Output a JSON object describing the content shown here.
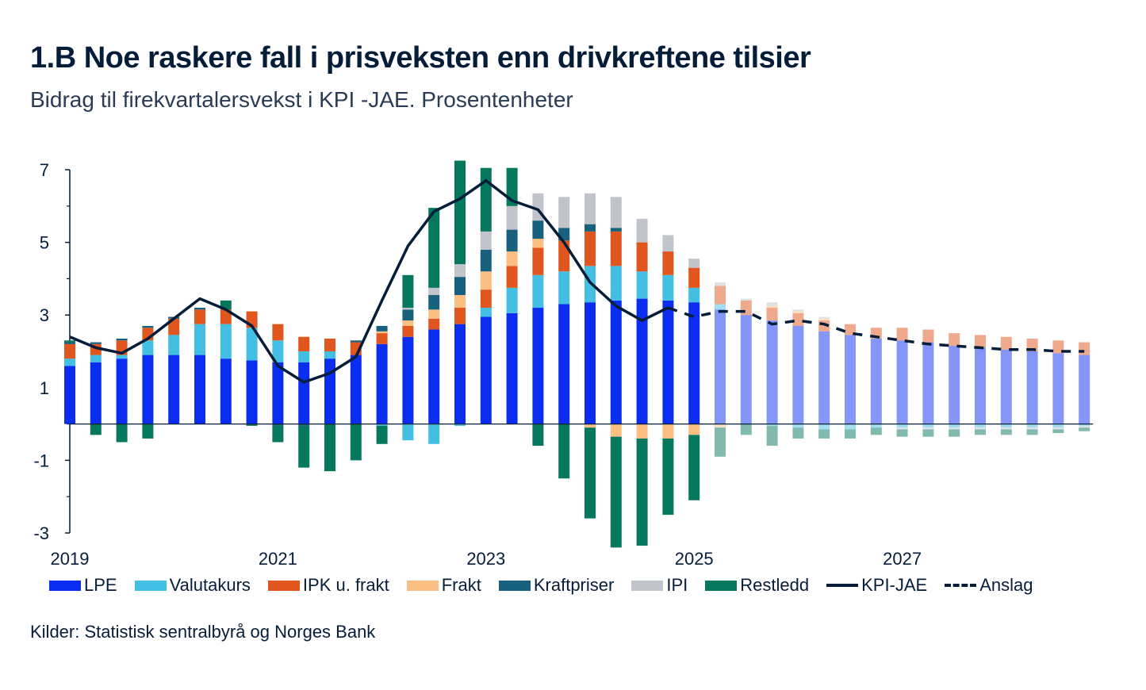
{
  "title": "1.B Noe raskere fall i prisveksten enn drivkreftene tilsier",
  "subtitle": "Bidrag til firekvartalersvekst i KPI -JAE. Prosentenheter",
  "source": "Kilder: Statistisk sentralbyrå og Norges Bank",
  "colors": {
    "LPE": "#0a2df0",
    "Valutakurs": "#43bfe4",
    "IPK u. frakt": "#e0561e",
    "Frakt": "#fbbf84",
    "Kraftpriser": "#17607e",
    "IPI": "#c2c4cb",
    "Restledd": "#06785e",
    "KPI-JAE": "#061d3a",
    "Anslag": "#061d3a"
  },
  "chart_data": {
    "type": "bar",
    "stacked": true,
    "yticks": [
      "7",
      "5",
      "3",
      "1",
      "-1",
      "-3"
    ],
    "ylim": [
      -3,
      7
    ],
    "xticks": [
      "2019",
      "2021",
      "2023",
      "2025",
      "2027"
    ],
    "forecast_start_index": 25,
    "categories": [
      "2019K1",
      "2019K2",
      "2019K3",
      "2019K4",
      "2020K1",
      "2020K2",
      "2020K3",
      "2020K4",
      "2021K1",
      "2021K2",
      "2021K3",
      "2021K4",
      "2022K1",
      "2022K2",
      "2022K3",
      "2022K4",
      "2023K1",
      "2023K2",
      "2023K3",
      "2023K4",
      "2024K1",
      "2024K2",
      "2024K3",
      "2024K4",
      "2025K1",
      "2025K2",
      "2025K3",
      "2025K4",
      "2026K1",
      "2026K2",
      "2026K3",
      "2026K4",
      "2027K1",
      "2027K2",
      "2027K3",
      "2027K4",
      "2028K1",
      "2028K2",
      "2028K3",
      "2028K4"
    ],
    "series": [
      {
        "name": "LPE",
        "values": [
          1.6,
          1.7,
          1.8,
          1.9,
          1.9,
          1.9,
          1.8,
          1.75,
          1.7,
          1.7,
          1.8,
          1.9,
          2.2,
          2.4,
          2.6,
          2.75,
          2.95,
          3.05,
          3.2,
          3.3,
          3.35,
          3.4,
          3.45,
          3.4,
          3.35,
          3.15,
          3.0,
          2.85,
          2.7,
          2.55,
          2.45,
          2.35,
          2.3,
          2.25,
          2.15,
          2.1,
          2.05,
          2.0,
          1.95,
          1.9
        ]
      },
      {
        "name": "Valutakurs",
        "values": [
          0.2,
          0.2,
          0.1,
          0.4,
          0.55,
          0.85,
          0.95,
          0.9,
          0.6,
          0.3,
          0.2,
          0.0,
          -0.05,
          -0.45,
          -0.55,
          -0.05,
          0.25,
          0.7,
          0.9,
          0.9,
          1.0,
          0.95,
          0.75,
          0.7,
          0.4,
          0.15,
          0.0,
          -0.05,
          -0.1,
          -0.15,
          -0.15,
          -0.1,
          -0.1,
          -0.1,
          -0.1,
          -0.1,
          -0.1,
          -0.1,
          -0.1,
          -0.05
        ]
      },
      {
        "name": "IPK u. frakt",
        "values": [
          0.4,
          0.3,
          0.4,
          0.35,
          0.45,
          0.4,
          0.4,
          0.45,
          0.45,
          0.4,
          0.35,
          0.35,
          0.3,
          0.3,
          0.3,
          0.45,
          0.5,
          0.6,
          0.75,
          0.85,
          0.95,
          0.95,
          0.8,
          0.65,
          0.55,
          0.5,
          0.4,
          0.35,
          0.35,
          0.3,
          0.3,
          0.3,
          0.35,
          0.35,
          0.35,
          0.35,
          0.35,
          0.35,
          0.35,
          0.35
        ]
      },
      {
        "name": "Frakt",
        "values": [
          0.0,
          0.0,
          0.0,
          0.0,
          0.0,
          0.0,
          0.0,
          0.0,
          0.0,
          0.0,
          0.0,
          0.0,
          0.05,
          0.15,
          0.25,
          0.35,
          0.5,
          0.4,
          0.25,
          0.0,
          -0.1,
          -0.35,
          -0.4,
          -0.4,
          -0.3,
          -0.1,
          0.0,
          0.05,
          0.05,
          0.05,
          0.0,
          0.0,
          0.0,
          0.0,
          0.0,
          0.0,
          0.0,
          0.0,
          0.0,
          0.0
        ]
      },
      {
        "name": "Kraftpriser",
        "values": [
          0.05,
          0.05,
          0.05,
          0.05,
          0.05,
          0.05,
          0.0,
          0.0,
          -0.05,
          -0.05,
          0.0,
          0.05,
          0.15,
          0.3,
          0.4,
          0.5,
          0.6,
          0.6,
          0.5,
          0.35,
          0.2,
          0.1,
          0.0,
          0.0,
          0.0,
          0.0,
          0.0,
          0.0,
          0.0,
          0.0,
          0.0,
          0.0,
          0.0,
          0.0,
          0.0,
          0.0,
          0.0,
          0.0,
          0.0,
          0.0
        ]
      },
      {
        "name": "IPI",
        "values": [
          0.0,
          0.0,
          0.0,
          0.0,
          0.0,
          0.0,
          0.0,
          0.0,
          0.0,
          0.0,
          0.0,
          0.0,
          0.0,
          0.05,
          0.2,
          0.35,
          0.5,
          0.65,
          0.75,
          0.85,
          0.85,
          0.85,
          0.65,
          0.45,
          0.25,
          0.1,
          0.05,
          0.1,
          0.05,
          0.05,
          0.0,
          0.0,
          -0.05,
          -0.05,
          -0.05,
          -0.05,
          -0.05,
          -0.05,
          -0.05,
          -0.05
        ]
      },
      {
        "name": "Restledd",
        "values": [
          0.05,
          -0.3,
          -0.5,
          -0.4,
          0.0,
          0.0,
          0.25,
          -0.05,
          -0.45,
          -1.15,
          -1.3,
          -1.0,
          -0.5,
          0.9,
          2.2,
          2.85,
          1.75,
          1.05,
          -0.6,
          -1.5,
          -2.5,
          -3.05,
          -2.95,
          -2.1,
          -1.8,
          -0.8,
          -0.3,
          -0.55,
          -0.3,
          -0.25,
          -0.25,
          -0.2,
          -0.2,
          -0.2,
          -0.2,
          -0.15,
          -0.15,
          -0.15,
          -0.1,
          -0.1
        ]
      }
    ],
    "lines": [
      {
        "name": "KPI-JAE",
        "values": [
          2.4,
          2.1,
          1.95,
          2.35,
          2.9,
          3.45,
          3.15,
          2.7,
          1.6,
          1.15,
          1.4,
          1.85,
          3.4,
          4.9,
          5.85,
          6.2,
          6.7,
          6.15,
          5.9,
          5.0,
          3.9,
          3.25,
          2.85,
          3.2
        ]
      },
      {
        "name": "Anslag",
        "start_index": 23,
        "values": [
          3.2,
          2.95,
          3.1,
          3.1,
          2.75,
          2.85,
          2.75,
          2.5,
          2.4,
          2.3,
          2.2,
          2.15,
          2.1,
          2.05,
          2.05,
          2.0,
          2.0
        ]
      }
    ],
    "legend": [
      "LPE",
      "Valutakurs",
      "IPK u. frakt",
      "Frakt",
      "Kraftpriser",
      "IPI",
      "Restledd",
      "KPI-JAE",
      "Anslag"
    ]
  }
}
